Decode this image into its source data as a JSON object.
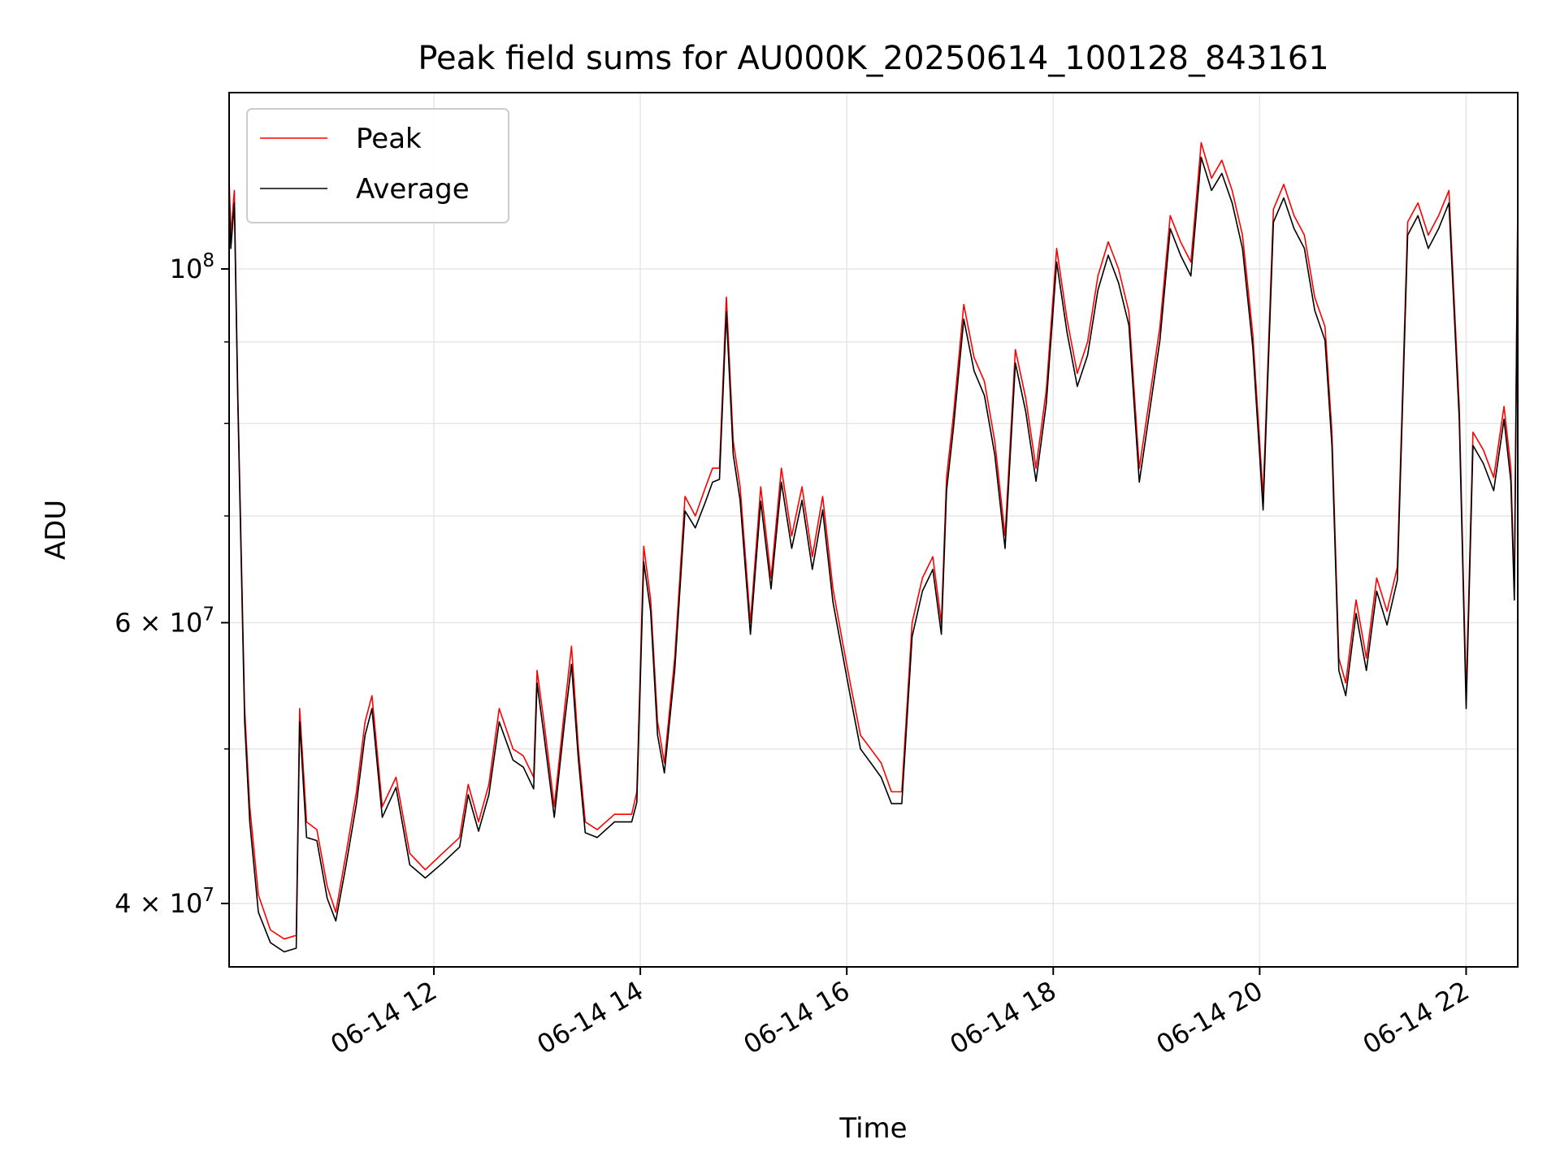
{
  "chart_data": {
    "type": "line",
    "title": "Peak field sums for AU000K_20250614_100128_843161",
    "xlabel": "Time",
    "ylabel": "ADU",
    "yscale": "log",
    "grid": true,
    "legend_position": "top-left",
    "xlim": [
      "06-14 10:01",
      "06-14 22:30"
    ],
    "ylim": [
      36500000,
      129000000
    ],
    "x_ticks": [
      "06-14 12",
      "06-14 14",
      "06-14 16",
      "06-14 18",
      "06-14 20",
      "06-14 22"
    ],
    "y_ticks": [
      {
        "label": "10^8",
        "base": "10",
        "exp": "8",
        "value": 100000000
      },
      {
        "label": "6 × 10^7",
        "mant": "6",
        "base": "10",
        "exp": "7",
        "value": 60000000
      },
      {
        "label": "4 × 10^7",
        "mant": "4",
        "base": "10",
        "exp": "7",
        "value": 40000000
      }
    ],
    "series": [
      {
        "name": "Peak",
        "color": "#ff0000",
        "points": [
          [
            "10:01",
            114000000
          ],
          [
            "10:02",
            105000000
          ],
          [
            "10:04",
            112000000
          ],
          [
            "10:06",
            84000000
          ],
          [
            "10:10",
            53000000
          ],
          [
            "10:13",
            46000000
          ],
          [
            "10:18",
            40500000
          ],
          [
            "10:25",
            38500000
          ],
          [
            "10:33",
            38000000
          ],
          [
            "10:40",
            38200000
          ],
          [
            "10:42",
            53000000
          ],
          [
            "10:46",
            45000000
          ],
          [
            "10:52",
            44500000
          ],
          [
            "10:58",
            41000000
          ],
          [
            "11:03",
            39500000
          ],
          [
            "11:09",
            43000000
          ],
          [
            "11:15",
            47000000
          ],
          [
            "11:20",
            52000000
          ],
          [
            "11:24",
            54000000
          ],
          [
            "11:30",
            46000000
          ],
          [
            "11:38",
            48000000
          ],
          [
            "11:46",
            43000000
          ],
          [
            "11:55",
            42000000
          ],
          [
            "12:05",
            43000000
          ],
          [
            "12:15",
            44000000
          ],
          [
            "12:20",
            47500000
          ],
          [
            "12:26",
            45000000
          ],
          [
            "12:32",
            47500000
          ],
          [
            "12:38",
            53000000
          ],
          [
            "12:46",
            50000000
          ],
          [
            "12:52",
            49500000
          ],
          [
            "12:58",
            48000000
          ],
          [
            "13:00",
            56000000
          ],
          [
            "13:04",
            52000000
          ],
          [
            "13:10",
            46000000
          ],
          [
            "13:16",
            53000000
          ],
          [
            "13:20",
            58000000
          ],
          [
            "13:24",
            50000000
          ],
          [
            "13:28",
            45000000
          ],
          [
            "13:35",
            44500000
          ],
          [
            "13:45",
            45500000
          ],
          [
            "13:55",
            45500000
          ],
          [
            "13:58",
            47000000
          ],
          [
            "14:02",
            67000000
          ],
          [
            "14:06",
            62000000
          ],
          [
            "14:10",
            52000000
          ],
          [
            "14:14",
            49000000
          ],
          [
            "14:20",
            57000000
          ],
          [
            "14:26",
            72000000
          ],
          [
            "14:32",
            70000000
          ],
          [
            "14:38",
            73000000
          ],
          [
            "14:42",
            75000000
          ],
          [
            "14:46",
            75000000
          ],
          [
            "14:50",
            96000000
          ],
          [
            "14:54",
            78000000
          ],
          [
            "14:58",
            73000000
          ],
          [
            "15:04",
            60000000
          ],
          [
            "15:10",
            73000000
          ],
          [
            "15:16",
            64000000
          ],
          [
            "15:22",
            75000000
          ],
          [
            "15:28",
            68000000
          ],
          [
            "15:34",
            73000000
          ],
          [
            "15:40",
            66000000
          ],
          [
            "15:46",
            72000000
          ],
          [
            "15:52",
            63000000
          ],
          [
            "15:58",
            58000000
          ],
          [
            "16:02",
            55000000
          ],
          [
            "16:08",
            51000000
          ],
          [
            "16:14",
            50000000
          ],
          [
            "16:20",
            49000000
          ],
          [
            "16:26",
            47000000
          ],
          [
            "16:32",
            47000000
          ],
          [
            "16:38",
            60000000
          ],
          [
            "16:44",
            64000000
          ],
          [
            "16:50",
            66000000
          ],
          [
            "16:55",
            60000000
          ],
          [
            "16:58",
            74000000
          ],
          [
            "17:02",
            81000000
          ],
          [
            "17:08",
            95000000
          ],
          [
            "17:14",
            88000000
          ],
          [
            "17:20",
            85000000
          ],
          [
            "17:26",
            78000000
          ],
          [
            "17:32",
            68000000
          ],
          [
            "17:38",
            89000000
          ],
          [
            "17:44",
            83000000
          ],
          [
            "17:50",
            75000000
          ],
          [
            "17:56",
            84000000
          ],
          [
            "18:02",
            103000000
          ],
          [
            "18:08",
            93000000
          ],
          [
            "18:14",
            86000000
          ],
          [
            "18:20",
            90000000
          ],
          [
            "18:26",
            99000000
          ],
          [
            "18:32",
            104000000
          ],
          [
            "18:38",
            100000000
          ],
          [
            "18:44",
            94000000
          ],
          [
            "18:50",
            75000000
          ],
          [
            "18:56",
            83000000
          ],
          [
            "19:02",
            92000000
          ],
          [
            "19:08",
            108000000
          ],
          [
            "19:14",
            104000000
          ],
          [
            "19:20",
            101000000
          ],
          [
            "19:26",
            120000000
          ],
          [
            "19:32",
            114000000
          ],
          [
            "19:38",
            117000000
          ],
          [
            "19:44",
            112000000
          ],
          [
            "19:50",
            105000000
          ],
          [
            "19:56",
            91000000
          ],
          [
            "20:02",
            72000000
          ],
          [
            "20:08",
            109000000
          ],
          [
            "20:14",
            113000000
          ],
          [
            "20:20",
            108000000
          ],
          [
            "20:26",
            105000000
          ],
          [
            "20:32",
            96000000
          ],
          [
            "20:38",
            92000000
          ],
          [
            "20:42",
            79000000
          ],
          [
            "20:46",
            57000000
          ],
          [
            "20:50",
            55000000
          ],
          [
            "20:56",
            62000000
          ],
          [
            "21:02",
            57000000
          ],
          [
            "21:08",
            64000000
          ],
          [
            "21:14",
            61000000
          ],
          [
            "21:20",
            65000000
          ],
          [
            "21:26",
            107000000
          ],
          [
            "21:32",
            110000000
          ],
          [
            "21:38",
            105000000
          ],
          [
            "21:44",
            108000000
          ],
          [
            "21:50",
            112000000
          ],
          [
            "21:56",
            82000000
          ],
          [
            "22:00",
            54000000
          ],
          [
            "22:04",
            79000000
          ],
          [
            "22:10",
            77000000
          ],
          [
            "22:16",
            74000000
          ],
          [
            "22:22",
            82000000
          ],
          [
            "22:26",
            75000000
          ],
          [
            "22:28",
            63000000
          ],
          [
            "22:30",
            110000000
          ]
        ]
      },
      {
        "name": "Average",
        "color": "#000000",
        "points": [
          [
            "10:01",
            112000000
          ],
          [
            "10:02",
            103000000
          ],
          [
            "10:04",
            110000000
          ],
          [
            "10:06",
            83000000
          ],
          [
            "10:10",
            52000000
          ],
          [
            "10:13",
            45000000
          ],
          [
            "10:18",
            39500000
          ],
          [
            "10:25",
            37800000
          ],
          [
            "10:33",
            37300000
          ],
          [
            "10:40",
            37500000
          ],
          [
            "10:42",
            52000000
          ],
          [
            "10:46",
            44000000
          ],
          [
            "10:52",
            43800000
          ],
          [
            "10:58",
            40300000
          ],
          [
            "11:03",
            39000000
          ],
          [
            "11:09",
            42300000
          ],
          [
            "11:15",
            46200000
          ],
          [
            "11:20",
            51000000
          ],
          [
            "11:24",
            53000000
          ],
          [
            "11:30",
            45300000
          ],
          [
            "11:38",
            47300000
          ],
          [
            "11:46",
            42300000
          ],
          [
            "11:55",
            41500000
          ],
          [
            "12:05",
            42400000
          ],
          [
            "12:15",
            43400000
          ],
          [
            "12:20",
            46800000
          ],
          [
            "12:26",
            44400000
          ],
          [
            "12:32",
            46800000
          ],
          [
            "12:38",
            52000000
          ],
          [
            "12:46",
            49200000
          ],
          [
            "12:52",
            48700000
          ],
          [
            "12:58",
            47200000
          ],
          [
            "13:00",
            55000000
          ],
          [
            "13:04",
            51000000
          ],
          [
            "13:10",
            45300000
          ],
          [
            "13:16",
            52000000
          ],
          [
            "13:20",
            56500000
          ],
          [
            "13:24",
            49200000
          ],
          [
            "13:28",
            44300000
          ],
          [
            "13:35",
            44000000
          ],
          [
            "13:45",
            45000000
          ],
          [
            "13:55",
            45000000
          ],
          [
            "13:58",
            46300000
          ],
          [
            "14:02",
            65500000
          ],
          [
            "14:06",
            61000000
          ],
          [
            "14:10",
            51000000
          ],
          [
            "14:14",
            48300000
          ],
          [
            "14:20",
            56000000
          ],
          [
            "14:26",
            70500000
          ],
          [
            "14:32",
            68800000
          ],
          [
            "14:38",
            71500000
          ],
          [
            "14:42",
            73500000
          ],
          [
            "14:46",
            73800000
          ],
          [
            "14:50",
            94000000
          ],
          [
            "14:54",
            76500000
          ],
          [
            "14:58",
            71600000
          ],
          [
            "15:04",
            59000000
          ],
          [
            "15:10",
            71500000
          ],
          [
            "15:16",
            63000000
          ],
          [
            "15:22",
            73500000
          ],
          [
            "15:28",
            66800000
          ],
          [
            "15:34",
            71600000
          ],
          [
            "15:40",
            64800000
          ],
          [
            "15:46",
            70600000
          ],
          [
            "15:52",
            61800000
          ],
          [
            "15:58",
            57000000
          ],
          [
            "16:02",
            54000000
          ],
          [
            "16:08",
            50000000
          ],
          [
            "16:14",
            49000000
          ],
          [
            "16:20",
            48000000
          ],
          [
            "16:26",
            46200000
          ],
          [
            "16:32",
            46200000
          ],
          [
            "16:38",
            58800000
          ],
          [
            "16:44",
            62800000
          ],
          [
            "16:50",
            64800000
          ],
          [
            "16:55",
            59000000
          ],
          [
            "16:58",
            72600000
          ],
          [
            "17:02",
            79500000
          ],
          [
            "17:08",
            93000000
          ],
          [
            "17:14",
            86300000
          ],
          [
            "17:20",
            83300000
          ],
          [
            "17:26",
            76500000
          ],
          [
            "17:32",
            66800000
          ],
          [
            "17:38",
            87300000
          ],
          [
            "17:44",
            81400000
          ],
          [
            "17:50",
            73600000
          ],
          [
            "17:56",
            82400000
          ],
          [
            "18:02",
            101000000
          ],
          [
            "18:08",
            91300000
          ],
          [
            "18:14",
            84400000
          ],
          [
            "18:20",
            88300000
          ],
          [
            "18:26",
            97000000
          ],
          [
            "18:32",
            102000000
          ],
          [
            "18:38",
            98000000
          ],
          [
            "18:44",
            92200000
          ],
          [
            "18:50",
            73500000
          ],
          [
            "18:56",
            81400000
          ],
          [
            "19:02",
            90200000
          ],
          [
            "19:08",
            106000000
          ],
          [
            "19:14",
            102000000
          ],
          [
            "19:20",
            99000000
          ],
          [
            "19:26",
            117500000
          ],
          [
            "19:32",
            112000000
          ],
          [
            "19:38",
            114800000
          ],
          [
            "19:44",
            110000000
          ],
          [
            "19:50",
            103000000
          ],
          [
            "19:56",
            89300000
          ],
          [
            "20:02",
            70600000
          ],
          [
            "20:08",
            107000000
          ],
          [
            "20:14",
            110800000
          ],
          [
            "20:20",
            106000000
          ],
          [
            "20:26",
            103000000
          ],
          [
            "20:32",
            94200000
          ],
          [
            "20:38",
            90200000
          ],
          [
            "20:42",
            77500000
          ],
          [
            "20:46",
            56000000
          ],
          [
            "20:50",
            54000000
          ],
          [
            "20:56",
            60800000
          ],
          [
            "21:02",
            56000000
          ],
          [
            "21:08",
            62800000
          ],
          [
            "21:14",
            59800000
          ],
          [
            "21:20",
            63800000
          ],
          [
            "21:26",
            105000000
          ],
          [
            "21:32",
            108000000
          ],
          [
            "21:38",
            103000000
          ],
          [
            "21:44",
            106000000
          ],
          [
            "21:50",
            110000000
          ],
          [
            "21:56",
            80500000
          ],
          [
            "22:00",
            53000000
          ],
          [
            "22:04",
            77500000
          ],
          [
            "22:10",
            75500000
          ],
          [
            "22:16",
            72600000
          ],
          [
            "22:22",
            80500000
          ],
          [
            "22:26",
            73600000
          ],
          [
            "22:28",
            62000000
          ],
          [
            "22:30",
            108000000
          ]
        ]
      }
    ]
  }
}
